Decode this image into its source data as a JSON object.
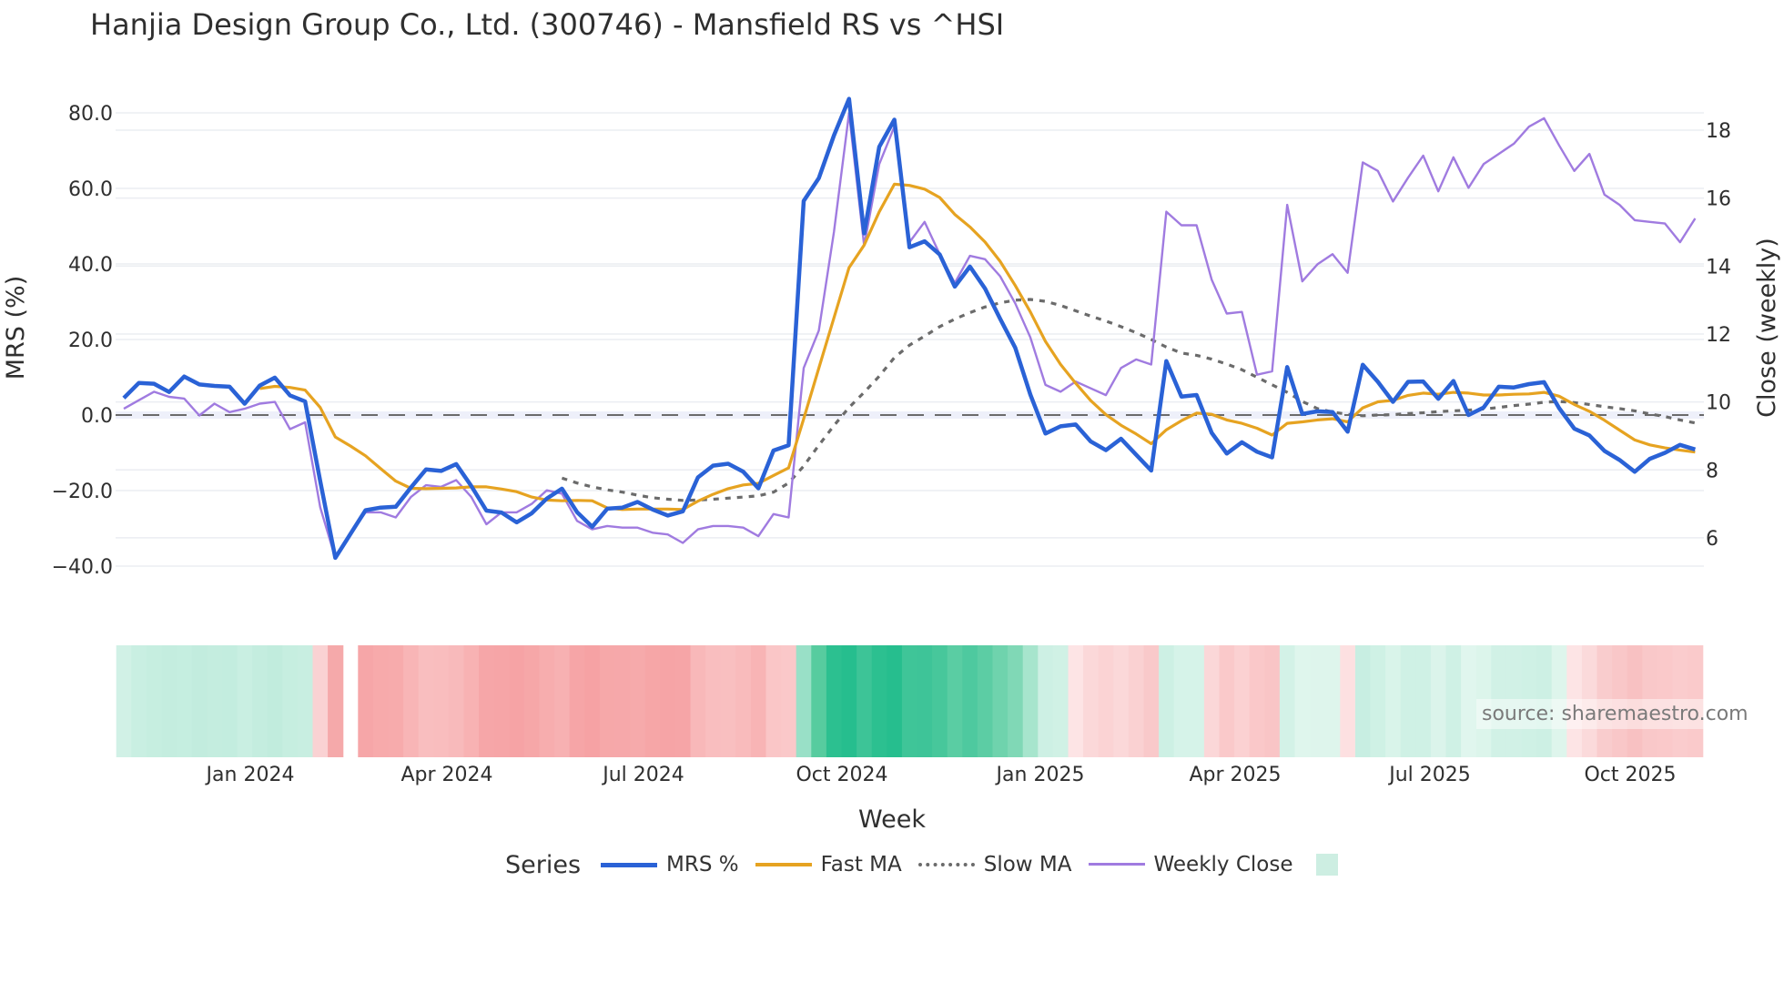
{
  "title": "Hanjia Design Group Co., Ltd. (300746) - Mansfield RS vs ^HSI",
  "source_label": "source: sharemaestro.com",
  "x_axis_title": "Week",
  "legend": {
    "title": "Series",
    "items": [
      {
        "label": "MRS %",
        "color": "#2a62d6",
        "style": "solid-thick"
      },
      {
        "label": "Fast MA",
        "color": "#e6a321",
        "style": "solid"
      },
      {
        "label": "Slow MA",
        "color": "#6b6b6b",
        "style": "dotted"
      },
      {
        "label": "Weekly Close",
        "color": "#a07be0",
        "style": "solid-thin"
      },
      {
        "label": "",
        "color": "#cdeee2",
        "style": "box"
      }
    ]
  },
  "chart_data": {
    "type": "line",
    "title": "Hanjia Design Group Co., Ltd. (300746) - Mansfield RS vs ^HSI",
    "xlabel": "Week",
    "ylabel": "MRS (%)",
    "y2label": "Close (weekly)",
    "ylim": [
      -45,
      88
    ],
    "y2lim": [
      4.9,
      19.4
    ],
    "yticks": [
      "80.0",
      "60.0",
      "40.0",
      "20.0",
      "0.0",
      "−20.0",
      "−40.0"
    ],
    "y2ticks": [
      "18",
      "16",
      "14",
      "12",
      "10",
      "8",
      "6"
    ],
    "xticks": [
      "Jan 2024",
      "Apr 2024",
      "Jul 2024",
      "Oct 2024",
      "Jan 2025",
      "Apr 2025",
      "Jul 2025",
      "Oct 2025"
    ],
    "zero_line": {
      "value": 0,
      "style": "dashed",
      "color": "#6b6b6b"
    },
    "grid": true,
    "series": [
      {
        "name": "MRS %",
        "axis": "left",
        "values": [
          4.5,
          8.5,
          8.3,
          6.1,
          10.2,
          8.1,
          7.7,
          7.5,
          3.0,
          7.8,
          9.9,
          5.2,
          3.6,
          -17.5,
          -37.8,
          -31.5,
          -25.2,
          -24.5,
          -24.3,
          -19.2,
          -14.4,
          -14.8,
          -13.0,
          -18.8,
          -25.3,
          -25.8,
          -28.4,
          -26.0,
          -22.1,
          -19.5,
          -25.7,
          -29.6,
          -24.8,
          -24.5,
          -23.0,
          -25.0,
          -26.6,
          -25.5,
          -16.5,
          -13.4,
          -12.9,
          -15.0,
          -19.4,
          -9.4,
          -8.0,
          56.7,
          62.7,
          74.0,
          83.7,
          48.1,
          71.0,
          78.2,
          44.4,
          46.0,
          42.5,
          34.0,
          39.3,
          33.5,
          25.5,
          17.8,
          5.4,
          -4.9,
          -3.0,
          -2.5,
          -7.0,
          -9.3,
          -6.3,
          -10.5,
          -14.7,
          14.3,
          4.9,
          5.3,
          -4.7,
          -10.2,
          -7.2,
          -9.7,
          -11.2,
          12.7,
          0.3,
          1.0,
          0.8,
          -4.4,
          13.3,
          8.8,
          3.5,
          8.8,
          8.9,
          4.3,
          9.0,
          0.0,
          2.0,
          7.5,
          7.3,
          8.2,
          8.7,
          1.8,
          -3.6,
          -5.4,
          -9.5,
          -11.9,
          -15.0,
          -11.6,
          -10.0,
          -7.9,
          -9.1
        ]
      },
      {
        "name": "Fast MA",
        "axis": "left",
        "values": [
          null,
          null,
          null,
          null,
          null,
          null,
          null,
          null,
          null,
          7.0,
          7.6,
          7.3,
          6.6,
          2.0,
          -5.8,
          -8.2,
          -10.8,
          -14.2,
          -17.5,
          -19.4,
          -19.5,
          -19.4,
          -19.3,
          -19.0,
          -19.0,
          -19.6,
          -20.3,
          -21.7,
          -22.5,
          -22.7,
          -22.6,
          -22.7,
          -24.6,
          -25.0,
          -24.9,
          -24.9,
          -24.9,
          -25.0,
          -22.8,
          -21.0,
          -19.5,
          -18.5,
          -18.1,
          -16.0,
          -14.0,
          -1.0,
          12.4,
          25.7,
          39.0,
          45.0,
          53.8,
          61.1,
          60.8,
          59.8,
          57.6,
          53.1,
          49.8,
          45.8,
          40.7,
          34.3,
          27.3,
          19.5,
          13.4,
          8.4,
          3.8,
          0.1,
          -2.7,
          -5.0,
          -7.6,
          -3.9,
          -1.5,
          0.5,
          0.2,
          -1.3,
          -2.2,
          -3.5,
          -5.3,
          -2.2,
          -1.8,
          -1.3,
          -1.0,
          -1.8,
          1.9,
          3.5,
          3.9,
          5.2,
          5.8,
          5.5,
          6.0,
          5.8,
          5.3,
          5.3,
          5.5,
          5.6,
          6.0,
          5.0,
          2.8,
          1.0,
          -1.4,
          -4.0,
          -6.6,
          -7.9,
          -8.7,
          -9.3,
          -9.8
        ]
      },
      {
        "name": "Slow MA",
        "axis": "left",
        "values": [
          null,
          null,
          null,
          null,
          null,
          null,
          null,
          null,
          null,
          null,
          null,
          null,
          null,
          null,
          null,
          null,
          null,
          null,
          null,
          null,
          null,
          null,
          null,
          null,
          null,
          null,
          null,
          null,
          null,
          -16.7,
          -18.0,
          -19.0,
          -19.8,
          -20.4,
          -21.2,
          -21.9,
          -22.3,
          -22.6,
          -22.5,
          -22.3,
          -22.0,
          -21.7,
          -21.4,
          -20.4,
          -18.0,
          -13.5,
          -8.0,
          -2.8,
          2.0,
          6.0,
          10.3,
          15.2,
          18.5,
          20.9,
          23.4,
          25.4,
          27.1,
          28.6,
          29.7,
          30.4,
          30.6,
          30.1,
          29.0,
          27.6,
          26.2,
          24.9,
          23.4,
          21.8,
          20.0,
          18.0,
          16.4,
          15.8,
          14.8,
          13.5,
          12.0,
          10.0,
          8.0,
          6.0,
          3.6,
          1.7,
          0.8,
          0.2,
          -0.2,
          0.0,
          0.1,
          0.4,
          0.6,
          0.9,
          1.1,
          1.3,
          1.6,
          2.0,
          2.5,
          2.9,
          3.4,
          3.6,
          3.3,
          2.8,
          2.2,
          1.7,
          1.1,
          0.3,
          -0.4,
          -1.3,
          -2.1
        ]
      },
      {
        "name": "Weekly Close",
        "axis": "right",
        "values": [
          9.8,
          10.05,
          10.3,
          10.15,
          10.1,
          9.6,
          9.95,
          9.7,
          9.8,
          9.95,
          10.0,
          9.2,
          9.4,
          6.9,
          5.4,
          6.1,
          6.75,
          6.75,
          6.6,
          7.2,
          7.55,
          7.5,
          7.7,
          7.2,
          6.4,
          6.75,
          6.75,
          7.0,
          7.4,
          7.3,
          6.5,
          6.25,
          6.35,
          6.3,
          6.3,
          6.15,
          6.1,
          5.85,
          6.25,
          6.35,
          6.35,
          6.3,
          6.05,
          6.7,
          6.6,
          11.0,
          12.1,
          15.0,
          18.5,
          14.6,
          17.0,
          18.1,
          14.7,
          15.3,
          14.35,
          13.5,
          14.3,
          14.2,
          13.7,
          12.9,
          11.9,
          10.5,
          10.3,
          10.6,
          10.4,
          10.2,
          11.0,
          11.25,
          11.1,
          15.6,
          15.2,
          15.2,
          13.6,
          12.6,
          12.65,
          10.8,
          10.9,
          15.8,
          13.55,
          14.05,
          14.35,
          13.8,
          17.05,
          16.8,
          15.9,
          16.6,
          17.25,
          16.2,
          17.2,
          16.3,
          17.0,
          17.3,
          17.6,
          18.1,
          18.35,
          17.55,
          16.8,
          17.3,
          16.1,
          15.8,
          15.35,
          15.3,
          15.25,
          14.7,
          15.4
        ]
      }
    ],
    "heatmap_strip": {
      "description": "per-week MRS color band (green = positive, red = negative); one empty week after first dip",
      "colors": [
        "#d1f1e6",
        "#c9efe2",
        "#c6eee0",
        "#c4eddf",
        "#c5eee0",
        "#c2ecde",
        "#c4eddf",
        "#c3eddf",
        "#c9efe2",
        "#c4eddf",
        "#c1ecdd",
        "#c6eee0",
        "#c8eee1",
        "#fad2d3",
        "#f5a9aa",
        null,
        "#f6a6a8",
        "#f7aaab",
        "#f7abac",
        "#f8b5b6",
        "#f9bebf",
        "#f9bdbe",
        "#f8babb",
        "#f8b2b3",
        "#f6a6a8",
        "#f6a5a7",
        "#f6a3a5",
        "#f6a7a8",
        "#f7adae",
        "#f7b1b2",
        "#f6a5a7",
        "#f6a2a4",
        "#f6a8a9",
        "#f6a8aa",
        "#f6aaab",
        "#f6a6a7",
        "#f6a4a6",
        "#f6a5a7",
        "#f8b8b9",
        "#f9bebf",
        "#f9bfc0",
        "#f9bbbc",
        "#f8b4b5",
        "#fac6c7",
        "#fac8c9",
        "#99e0c7",
        "#57cc9f",
        "#2cc090",
        "#26be8e",
        "#3dc497",
        "#2cc090",
        "#26be8e",
        "#3fc598",
        "#3ec498",
        "#47c79b",
        "#5acda3",
        "#4ec99f",
        "#5ccda4",
        "#6fd3ad",
        "#80d8b6",
        "#a7e5cd",
        "#cdf0e4",
        "#d0f1e5",
        "#fde4e5",
        "#fbd8d9",
        "#fbd3d4",
        "#fbd8d9",
        "#fad1d2",
        "#f9c9ca",
        "#cdf0e4",
        "#d6f3e9",
        "#d6f3e9",
        "#fbd7d8",
        "#fac9ca",
        "#fbd1d2",
        "#fac8c9",
        "#f9c5c6",
        "#d3f2e7",
        "#dff6ed",
        "#def5ec",
        "#def5ec",
        "#fde0e1",
        "#c8eee2",
        "#cff1e5",
        "#d9f4ea",
        "#cff1e5",
        "#cff1e5",
        "#dbf4eb",
        "#cff1e5",
        "#e0f6ee",
        "#dcf5eb",
        "#d1f1e6",
        "#d1f1e6",
        "#cff1e5",
        "#cdf0e4",
        "#def5ec",
        "#fde4e5",
        "#fbdadb",
        "#f9cccd",
        "#f9c7c8",
        "#f8c1c2",
        "#f9c8c9",
        "#fac9ca",
        "#facccd",
        "#facacb"
      ]
    }
  }
}
